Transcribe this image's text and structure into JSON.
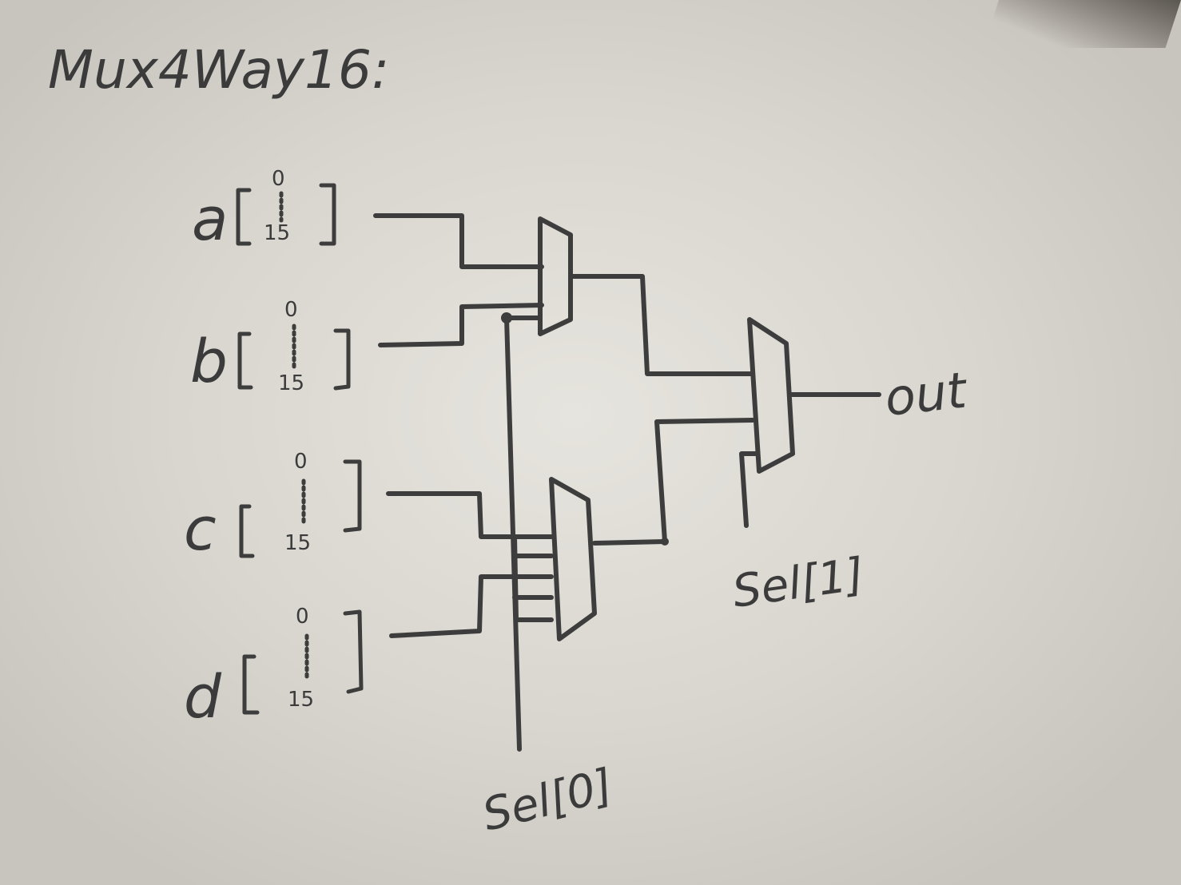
{
  "title": "Mux4Way16:",
  "inputs": [
    {
      "name": "a",
      "bit_top": "0",
      "bit_bottom": "15"
    },
    {
      "name": "b",
      "bit_top": "0",
      "bit_bottom": "15"
    },
    {
      "name": "c",
      "bit_top": "0",
      "bit_bottom": "15"
    },
    {
      "name": "d",
      "bit_top": "0",
      "bit_bottom": "15"
    }
  ],
  "selects": {
    "sel0": "Sel[0]",
    "sel1": "Sel[1]"
  },
  "output": "out",
  "colors": {
    "ink": "#3d3d3d",
    "paper": "#e6e4de"
  }
}
